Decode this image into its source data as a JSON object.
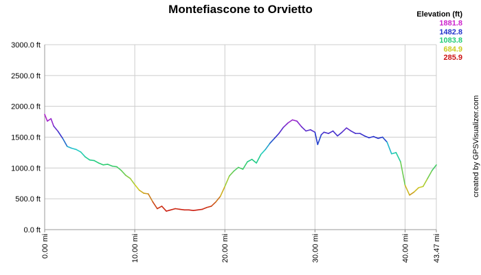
{
  "chart_data": {
    "type": "line",
    "title": "Montefiascone to Orvietto",
    "xlabel": "",
    "ylabel": "",
    "xlim": [
      0,
      43.47
    ],
    "ylim": [
      0,
      3000
    ],
    "grid": true,
    "credit": "created by GPSVisualizer.com",
    "legend": {
      "title": "Elevation (ft)",
      "placement": "top-right",
      "entries": [
        {
          "label": "1881.8",
          "color": "#cc22cc"
        },
        {
          "label": "1482.8",
          "color": "#2233cc"
        },
        {
          "label": "1083.8",
          "color": "#22cc77"
        },
        {
          "label": "684.9",
          "color": "#cccc22"
        },
        {
          "label": "285.9",
          "color": "#cc1111"
        }
      ]
    },
    "y_ticks": [
      {
        "value": 0,
        "label": "0.0 ft"
      },
      {
        "value": 500,
        "label": "500.0 ft"
      },
      {
        "value": 1000,
        "label": "1000.0 ft"
      },
      {
        "value": 1500,
        "label": "1500.0 ft"
      },
      {
        "value": 2000,
        "label": "2000.0 ft"
      },
      {
        "value": 2500,
        "label": "2500.0 ft"
      },
      {
        "value": 3000,
        "label": "3000.0 ft"
      }
    ],
    "x_ticks": [
      {
        "value": 0,
        "label": "0.00 mi"
      },
      {
        "value": 10,
        "label": "10.00 mi"
      },
      {
        "value": 20,
        "label": "20.00 mi"
      },
      {
        "value": 30,
        "label": "30.00 mi"
      },
      {
        "value": 40,
        "label": "40.00 mi"
      },
      {
        "value": 43.47,
        "label": "43.47 mi"
      }
    ],
    "series": [
      {
        "x": [
          0,
          0.3,
          0.7,
          1.0,
          1.5,
          2.0,
          2.5,
          3.0,
          3.5,
          4.0,
          4.5,
          5.0,
          5.5,
          6.0,
          6.5,
          7.0,
          7.5,
          8.0,
          8.5,
          9.0,
          9.5,
          10.0,
          10.5,
          11.0,
          11.5,
          12.0,
          12.5,
          13.0,
          13.5,
          14.0,
          14.5,
          15.0,
          15.5,
          16.0,
          16.5,
          17.0,
          17.5,
          18.0,
          18.5,
          19.0,
          19.5,
          20.0,
          20.5,
          21.0,
          21.5,
          22.0,
          22.5,
          23.0,
          23.5,
          24.0,
          24.5,
          25.0,
          25.5,
          26.0,
          26.5,
          27.0,
          27.5,
          28.0,
          28.5,
          29.0,
          29.5,
          30.0,
          30.3,
          30.7,
          31.0,
          31.5,
          32.0,
          32.5,
          33.0,
          33.5,
          34.0,
          34.5,
          35.0,
          35.5,
          36.0,
          36.5,
          37.0,
          37.5,
          38.0,
          38.5,
          39.0,
          39.5,
          40.0,
          40.5,
          41.0,
          41.5,
          42.0,
          42.5,
          43.0,
          43.47
        ],
        "y": [
          1870,
          1760,
          1800,
          1680,
          1590,
          1480,
          1350,
          1320,
          1300,
          1260,
          1180,
          1130,
          1120,
          1080,
          1050,
          1060,
          1030,
          1020,
          960,
          880,
          830,
          730,
          640,
          590,
          580,
          450,
          340,
          380,
          300,
          320,
          340,
          330,
          320,
          320,
          310,
          320,
          330,
          360,
          380,
          450,
          540,
          700,
          870,
          950,
          1010,
          980,
          1100,
          1140,
          1080,
          1220,
          1300,
          1400,
          1480,
          1560,
          1660,
          1730,
          1780,
          1760,
          1670,
          1600,
          1620,
          1580,
          1380,
          1540,
          1580,
          1560,
          1600,
          1520,
          1580,
          1650,
          1600,
          1560,
          1560,
          1520,
          1490,
          1510,
          1480,
          1500,
          1420,
          1230,
          1250,
          1100,
          720,
          560,
          610,
          680,
          700,
          830,
          960,
          1050
        ]
      }
    ]
  }
}
